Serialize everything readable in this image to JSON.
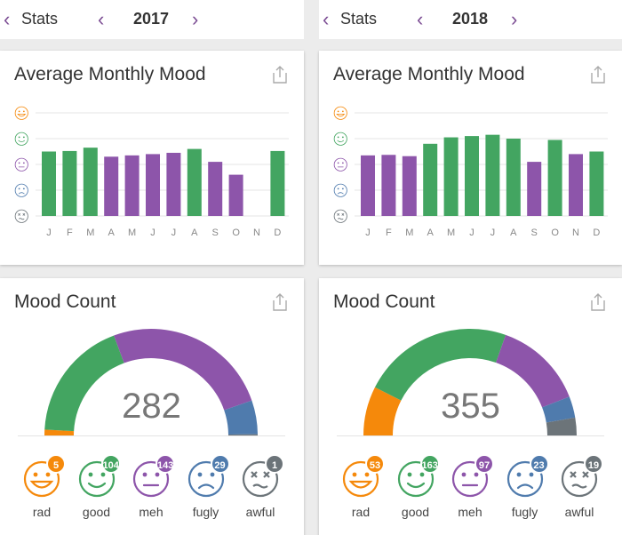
{
  "colors": {
    "rad": "#f5890b",
    "good": "#43a561",
    "meh": "#8d55aa",
    "fugly": "#4f7bad",
    "awful": "#6c7479",
    "accent": "#7b4c93"
  },
  "panels": [
    {
      "header": {
        "label": "Stats",
        "year": "2017"
      },
      "avg_title": "Average Monthly Mood",
      "count_title": "Mood Count",
      "total": "282",
      "moods": [
        {
          "name": "rad",
          "count": "5"
        },
        {
          "name": "good",
          "count": "104"
        },
        {
          "name": "meh",
          "count": "143"
        },
        {
          "name": "fugly",
          "count": "29"
        },
        {
          "name": "awful",
          "count": "1"
        }
      ]
    },
    {
      "header": {
        "label": "Stats",
        "year": "2018"
      },
      "avg_title": "Average Monthly Mood",
      "count_title": "Mood Count",
      "total": "355",
      "moods": [
        {
          "name": "rad",
          "count": "53"
        },
        {
          "name": "good",
          "count": "163"
        },
        {
          "name": "meh",
          "count": "97"
        },
        {
          "name": "fugly",
          "count": "23"
        },
        {
          "name": "awful",
          "count": "19"
        }
      ]
    }
  ],
  "chart_data": [
    {
      "type": "bar",
      "title": "Average Monthly Mood",
      "year": "2017",
      "categories": [
        "J",
        "F",
        "M",
        "A",
        "M",
        "J",
        "J",
        "A",
        "S",
        "O",
        "N",
        "D"
      ],
      "values": [
        2.5,
        2.52,
        2.65,
        2.3,
        2.35,
        2.4,
        2.45,
        2.6,
        2.1,
        1.6,
        null,
        2.52
      ],
      "ylim": [
        0,
        4
      ],
      "y_levels": [
        "awful",
        "fugly",
        "meh",
        "good",
        "rad"
      ]
    },
    {
      "type": "bar",
      "title": "Average Monthly Mood",
      "year": "2018",
      "categories": [
        "J",
        "F",
        "M",
        "A",
        "M",
        "J",
        "J",
        "A",
        "S",
        "O",
        "N",
        "D"
      ],
      "values": [
        2.35,
        2.37,
        2.32,
        2.8,
        3.05,
        3.1,
        3.15,
        3.0,
        2.1,
        2.95,
        2.4,
        2.5
      ],
      "ylim": [
        0,
        4
      ],
      "y_levels": [
        "awful",
        "fugly",
        "meh",
        "good",
        "rad"
      ]
    },
    {
      "type": "pie",
      "title": "Mood Count",
      "year": "2017",
      "categories": [
        "rad",
        "good",
        "meh",
        "fugly",
        "awful"
      ],
      "values": [
        5,
        104,
        143,
        29,
        1
      ],
      "total": 282
    },
    {
      "type": "pie",
      "title": "Mood Count",
      "year": "2018",
      "categories": [
        "rad",
        "good",
        "meh",
        "fugly",
        "awful"
      ],
      "values": [
        53,
        163,
        97,
        23,
        19
      ],
      "total": 355
    }
  ]
}
